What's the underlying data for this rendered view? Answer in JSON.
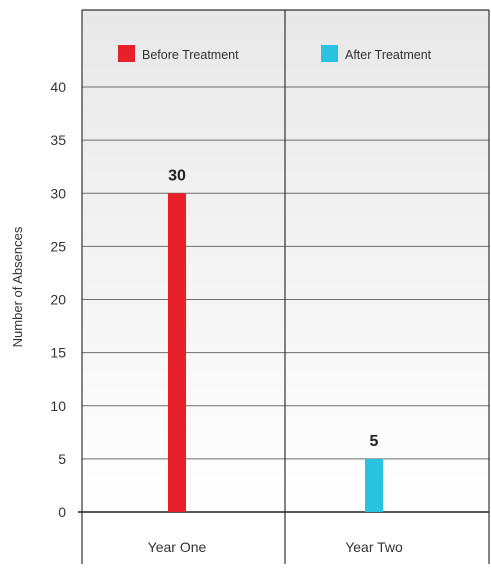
{
  "chart_data": {
    "type": "bar",
    "categories": [
      "Year One",
      "Year Two"
    ],
    "series": [
      {
        "name": "Before Treatment",
        "values": [
          30,
          null
        ],
        "color": "#e8202a"
      },
      {
        "name": "After Treatment",
        "values": [
          null,
          5
        ],
        "color": "#29c3e2"
      }
    ],
    "data_labels": [
      "30",
      "5"
    ],
    "ylabel": "Number of Absences",
    "xlabel": "",
    "ylim": [
      0,
      40
    ],
    "yticks": [
      0,
      5,
      10,
      15,
      20,
      25,
      30,
      35,
      40
    ],
    "grid": true,
    "legend_position": "top"
  }
}
